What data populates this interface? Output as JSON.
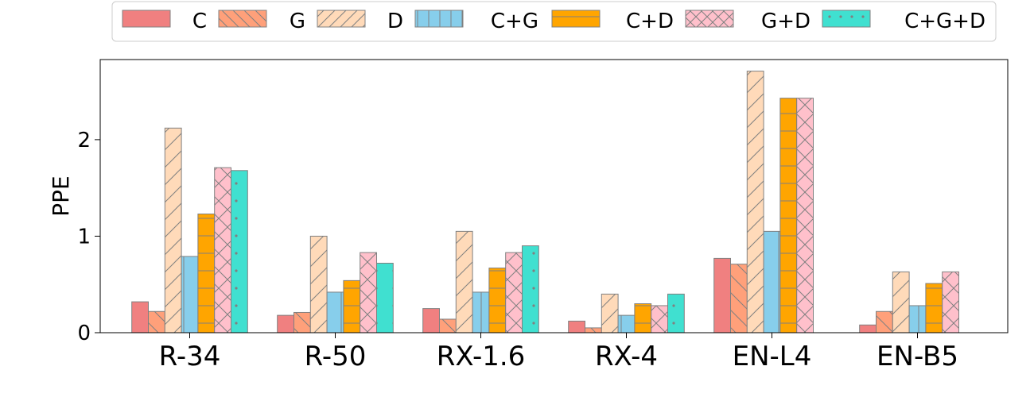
{
  "chart_data": {
    "type": "bar",
    "categories": [
      "R-34",
      "R-50",
      "RX-1.6",
      "RX-4",
      "EN-L4",
      "EN-B5"
    ],
    "ylabel": "PPE",
    "xlabel": "",
    "ylim": [
      0,
      2.83
    ],
    "yticks": [
      0,
      1,
      2
    ],
    "grid": false,
    "legend_position": "top",
    "series": [
      {
        "name": "C",
        "color": "#F08080",
        "hatch": "none",
        "values": [
          0.32,
          0.18,
          0.25,
          0.12,
          0.77,
          0.08
        ]
      },
      {
        "name": "G",
        "color": "#FFA07A",
        "hatch": "back",
        "values": [
          0.22,
          0.21,
          0.14,
          0.05,
          0.71,
          0.22
        ]
      },
      {
        "name": "D",
        "color": "#FFDAB9",
        "hatch": "forward",
        "values": [
          2.12,
          1.0,
          1.05,
          0.4,
          2.71,
          0.63
        ]
      },
      {
        "name": "C+G",
        "color": "#87CEEB",
        "hatch": "vertical",
        "values": [
          0.79,
          0.42,
          0.42,
          0.18,
          1.05,
          0.28
        ]
      },
      {
        "name": "C+D",
        "color": "#FFA500",
        "hatch": "horizontal",
        "values": [
          1.23,
          0.54,
          0.67,
          0.3,
          2.43,
          0.51
        ]
      },
      {
        "name": "G+D",
        "color": "#FFC0CB",
        "hatch": "cross",
        "values": [
          1.71,
          0.83,
          0.83,
          0.28,
          2.43,
          0.63
        ]
      },
      {
        "name": "C+G+D",
        "color": "#40E0D0",
        "hatch": "dots",
        "values": [
          1.68,
          0.72,
          0.9,
          0.4,
          null,
          null
        ]
      }
    ]
  }
}
